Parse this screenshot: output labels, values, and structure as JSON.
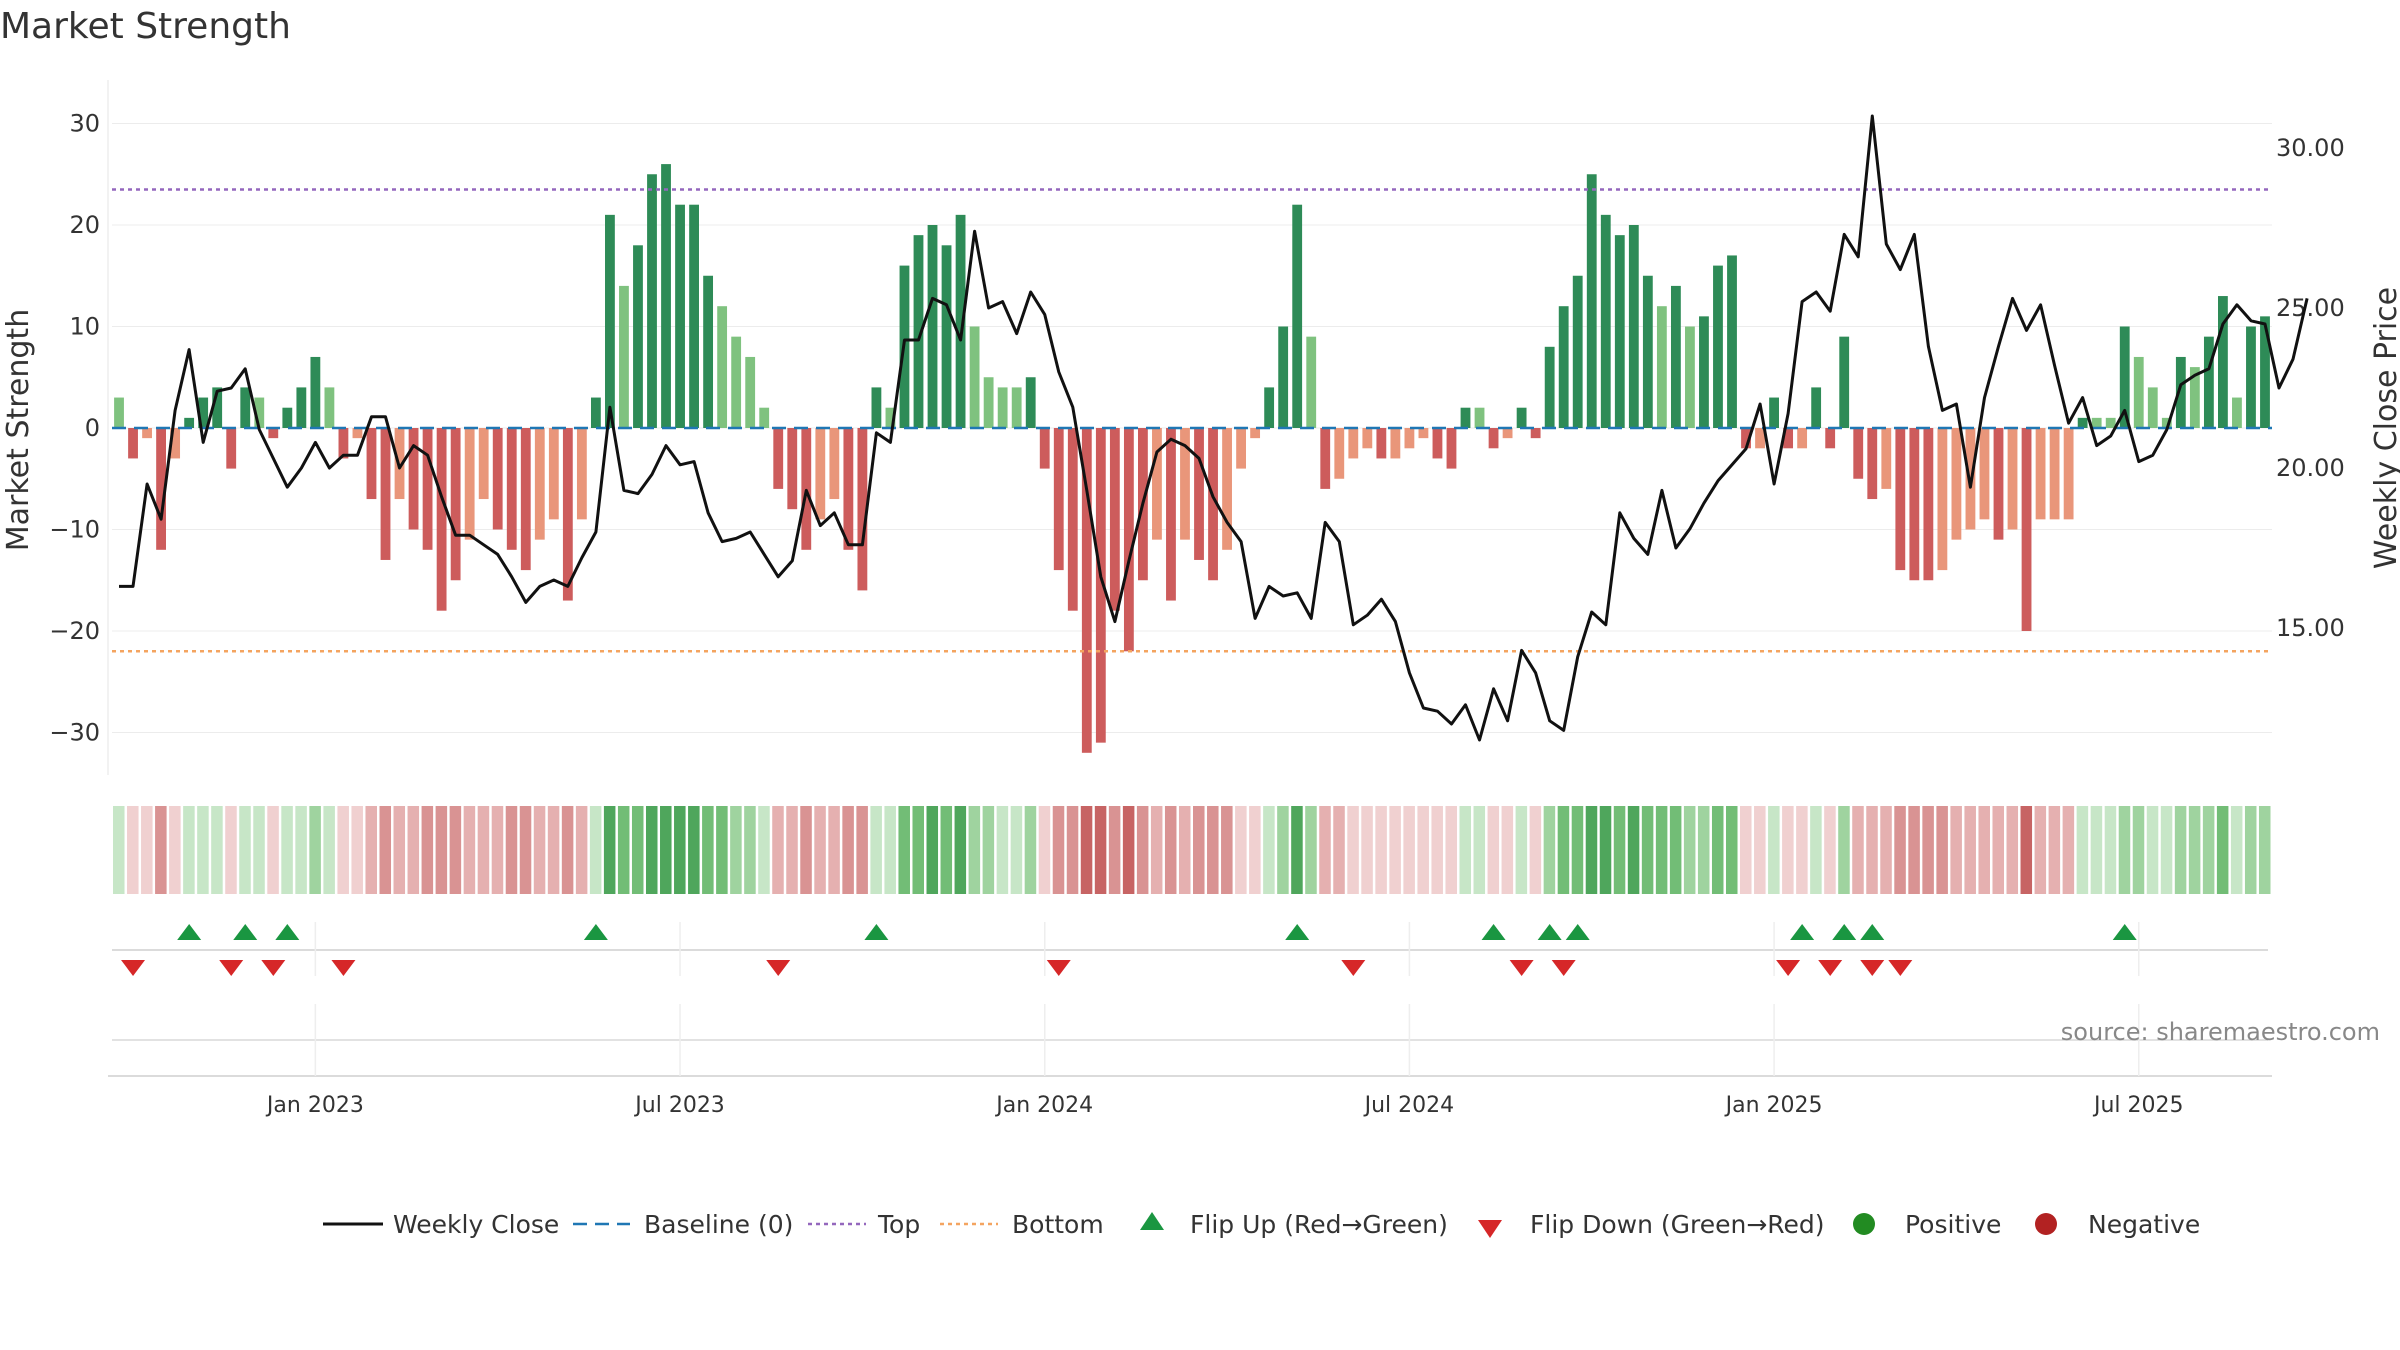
{
  "chart_data": {
    "type": "bar+line",
    "title": "Market Strength",
    "ylabel_left": "Market Strength",
    "ylabel_right": "Weekly Close Price",
    "ylim_left": [
      -35,
      35
    ],
    "ylim_right": [
      10.2,
      31.5
    ],
    "yticks_left": [
      30,
      20,
      10,
      0,
      -10,
      -20,
      -30
    ],
    "ytick_labels_left": [
      "30",
      "20",
      "10",
      "0",
      "−10",
      "−20",
      "−30"
    ],
    "yticks_right": [
      30,
      25,
      20,
      15
    ],
    "ytick_labels_right": [
      "30.00",
      "25.00",
      "20.00",
      "15.00"
    ],
    "top_line": 23.5,
    "bottom_line": -22,
    "xticks": [
      {
        "index": 14,
        "label": "Jan 2023"
      },
      {
        "index": 40,
        "label": "Jul 2023"
      },
      {
        "index": 66,
        "label": "Jan 2024"
      },
      {
        "index": 92,
        "label": "Jul 2024"
      },
      {
        "index": 118,
        "label": "Jan 2025"
      },
      {
        "index": 144,
        "label": "Jul 2025"
      }
    ],
    "strength": [
      3,
      -3,
      -1,
      -12,
      -3,
      1,
      3,
      4,
      -4,
      4,
      3,
      -1,
      2,
      4,
      7,
      4,
      -3,
      -1,
      -7,
      -13,
      -7,
      -10,
      -12,
      -18,
      -15,
      -11,
      -7,
      -10,
      -12,
      -14,
      -11,
      -9,
      -17,
      -9,
      3,
      21,
      14,
      18,
      25,
      26,
      22,
      22,
      15,
      12,
      9,
      7,
      2,
      -6,
      -8,
      -12,
      -9,
      -7,
      -12,
      -16,
      4,
      2,
      16,
      19,
      20,
      18,
      21,
      10,
      5,
      4,
      4,
      5,
      -4,
      -14,
      -18,
      -32,
      -31,
      -18,
      -22,
      -15,
      -11,
      -17,
      -11,
      -13,
      -15,
      -12,
      -4,
      -1,
      4,
      10,
      22,
      9,
      -6,
      -5,
      -3,
      -2,
      -3,
      -3,
      -2,
      -1,
      -3,
      -4,
      2,
      2,
      -2,
      -1,
      2,
      -1,
      8,
      12,
      15,
      25,
      21,
      19,
      20,
      15,
      12,
      14,
      10,
      11,
      16,
      17,
      -2,
      -2,
      3,
      -2,
      -2,
      4,
      -2,
      9,
      -5,
      -7,
      -6,
      -14,
      -15,
      -15,
      -14,
      -11,
      -10,
      -9,
      -11,
      -10,
      -20,
      -9,
      -9,
      -9,
      1,
      1,
      1,
      10,
      7,
      4,
      1,
      7,
      6,
      9,
      13,
      3,
      10,
      11
    ],
    "close": [
      16.3,
      16.3,
      19.5,
      18.4,
      21.8,
      23.7,
      20.8,
      22.4,
      22.5,
      23.1,
      21.2,
      20.3,
      19.4,
      20.0,
      20.8,
      20.0,
      20.4,
      20.4,
      21.6,
      21.6,
      20.0,
      20.7,
      20.4,
      19.1,
      17.9,
      17.9,
      17.6,
      17.3,
      16.6,
      15.8,
      16.3,
      16.5,
      16.3,
      17.2,
      18.0,
      21.9,
      19.3,
      19.2,
      19.8,
      20.7,
      20.1,
      20.2,
      18.6,
      17.7,
      17.8,
      18.0,
      17.3,
      16.6,
      17.1,
      19.3,
      18.2,
      18.6,
      17.6,
      17.6,
      21.1,
      20.8,
      24.0,
      24.0,
      25.3,
      25.1,
      24.0,
      27.4,
      25.0,
      25.2,
      24.2,
      25.5,
      24.8,
      23.0,
      21.9,
      19.3,
      16.6,
      15.2,
      17.1,
      18.9,
      20.5,
      20.9,
      20.7,
      20.3,
      19.1,
      18.3,
      17.7,
      15.3,
      16.3,
      16.0,
      16.1,
      15.3,
      18.3,
      17.7,
      15.1,
      15.4,
      15.9,
      15.2,
      13.6,
      12.5,
      12.4,
      12.0,
      12.6,
      11.5,
      13.1,
      12.1,
      14.3,
      13.6,
      12.1,
      11.8,
      14.1,
      15.5,
      15.1,
      18.6,
      17.8,
      17.3,
      19.3,
      17.5,
      18.1,
      18.9,
      19.6,
      20.1,
      20.6,
      22.0,
      19.5,
      21.7,
      25.2,
      25.5,
      24.9,
      27.3,
      26.6,
      31.0,
      27.0,
      26.2,
      27.3,
      23.8,
      21.8,
      22.0,
      19.4,
      22.2,
      23.8,
      25.3,
      24.3,
      25.1,
      23.2,
      21.4,
      22.2,
      20.7,
      21.0,
      21.8,
      20.2,
      20.4,
      21.2,
      22.6,
      22.9,
      23.1,
      24.5,
      25.1,
      24.6,
      24.5,
      22.5,
      23.4,
      25.3
    ],
    "flip_up_indices": [
      5,
      9,
      12,
      34,
      54,
      84,
      98,
      102,
      104,
      120,
      123,
      125,
      143
    ],
    "flip_down_indices": [
      1,
      8,
      11,
      16,
      47,
      67,
      88,
      100,
      103,
      119,
      122,
      125,
      127
    ]
  },
  "legend": {
    "weekly_close": "Weekly Close",
    "baseline": "Baseline (0)",
    "top": "Top",
    "bottom": "Bottom",
    "flip_up": "Flip Up (Red→Green)",
    "flip_down": "Flip Down (Green→Red)",
    "positive": "Positive",
    "negative": "Negative"
  },
  "source": "source: sharemaestro.com",
  "colors": {
    "pos_strong": "#2e8b57",
    "pos_light": "#7fc27f",
    "neg_strong": "#cd5c5c",
    "neg_light": "#e9967a",
    "close": "#111111",
    "baseline": "#1f77b4",
    "top": "#9467bd",
    "bottom": "#f4a460",
    "flip_up": "#1a9641",
    "flip_down": "#d62728",
    "positive_dot": "#228b22",
    "negative_dot": "#b22222"
  }
}
